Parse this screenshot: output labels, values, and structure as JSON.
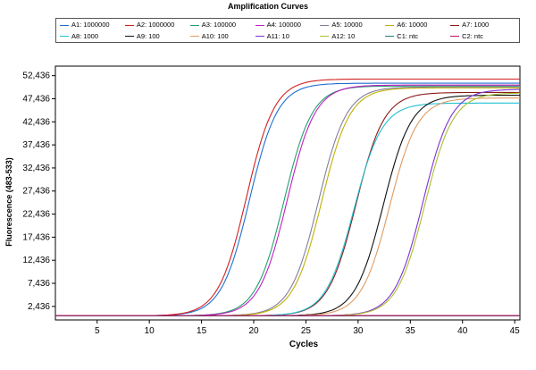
{
  "chart_data": {
    "type": "line",
    "title": "Amplification Curves",
    "xlabel": "Cycles",
    "ylabel": "Fluorescence (483-533)",
    "xlim": [
      1,
      45.5
    ],
    "ylim": [
      -500,
      54500
    ],
    "xticks": [
      5,
      10,
      15,
      20,
      25,
      30,
      35,
      40,
      45
    ],
    "yticks": [
      2436,
      7436,
      12436,
      17436,
      22436,
      27436,
      32436,
      37436,
      42436,
      47436,
      52436
    ],
    "ytick_labels": [
      "2,436",
      "7,436",
      "12,436",
      "17,436",
      "22,436",
      "27,436",
      "32,436",
      "37,436",
      "42,436",
      "47,436",
      "52,436"
    ],
    "grid": false,
    "legend_position": "top",
    "series": [
      {
        "name": "A1: 1000000",
        "color": "#1f6fd0",
        "baseline": 400,
        "plateau": 50800,
        "midpoint": 19.6,
        "slope": 1.35
      },
      {
        "name": "A2: 1000000",
        "color": "#d02020",
        "baseline": 400,
        "plateau": 51700,
        "midpoint": 19.3,
        "slope": 1.35
      },
      {
        "name": "A3: 100000",
        "color": "#20a070",
        "baseline": 400,
        "plateau": 50200,
        "midpoint": 22.9,
        "slope": 1.35
      },
      {
        "name": "A4: 100000",
        "color": "#c020c0",
        "baseline": 400,
        "plateau": 50400,
        "midpoint": 23.2,
        "slope": 1.35
      },
      {
        "name": "A5: 10000",
        "color": "#8080a0",
        "baseline": 400,
        "plateau": 50000,
        "midpoint": 26.2,
        "slope": 1.35
      },
      {
        "name": "A6: 10000",
        "color": "#c0b000",
        "baseline": 400,
        "plateau": 49800,
        "midpoint": 26.5,
        "slope": 1.35
      },
      {
        "name": "A7: 1000",
        "color": "#8b1a1a",
        "baseline": 400,
        "plateau": 48800,
        "midpoint": 29.8,
        "slope": 1.35
      },
      {
        "name": "A8: 1000",
        "color": "#20c0d0",
        "baseline": 400,
        "plateau": 46500,
        "midpoint": 29.6,
        "slope": 1.35
      },
      {
        "name": "A9: 100",
        "color": "#101010",
        "baseline": 400,
        "plateau": 48200,
        "midpoint": 32.4,
        "slope": 1.35
      },
      {
        "name": "A10: 100",
        "color": "#e09a60",
        "baseline": 400,
        "plateau": 47600,
        "midpoint": 33.0,
        "slope": 1.35
      },
      {
        "name": "A11: 10",
        "color": "#8030d0",
        "baseline": 400,
        "plateau": 49500,
        "midpoint": 36.2,
        "slope": 1.35
      },
      {
        "name": "A12: 10",
        "color": "#a8c030",
        "baseline": 400,
        "plateau": 48700,
        "midpoint": 36.4,
        "slope": 1.35
      },
      {
        "name": "C1: ntc",
        "color": "#208080",
        "baseline": 400,
        "plateau": 400,
        "midpoint": 60,
        "slope": 1.35
      },
      {
        "name": "C2: ntc",
        "color": "#c01060",
        "baseline": 450,
        "plateau": 450,
        "midpoint": 60,
        "slope": 1.35
      }
    ]
  }
}
